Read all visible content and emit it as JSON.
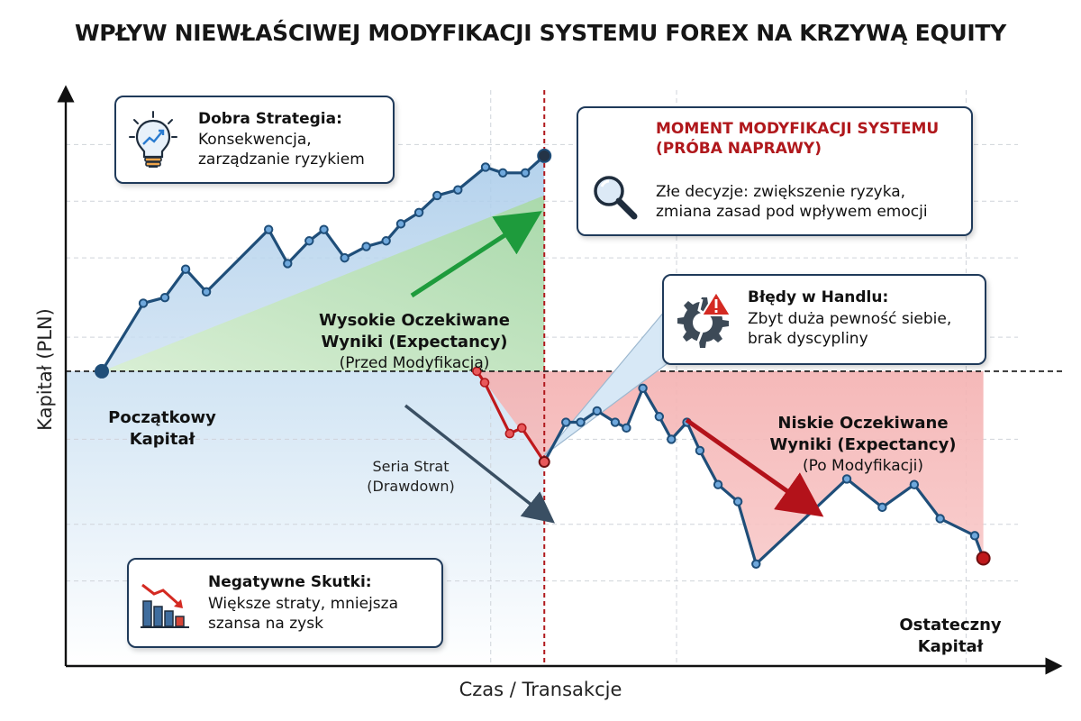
{
  "title": "WPŁYW NIEWŁAŚCIWEJ MODYFIKACJI SYSTEMU FOREX NA KRZYWĄ EQUITY",
  "chart_data": {
    "type": "line",
    "xlabel": "Czas / Transakcje",
    "ylabel": "Kapitał (PLN)",
    "xlim": [
      0,
      1060
    ],
    "ylim": [
      0,
      100
    ],
    "baseline_y": 52,
    "modification_x": 512,
    "grid": true,
    "series": [
      {
        "phase": "before",
        "color": "#1f4e79",
        "points": [
          [
            0,
            52
          ],
          [
            48,
            64
          ],
          [
            73,
            65
          ],
          [
            97,
            70
          ],
          [
            121,
            66
          ],
          [
            193,
            77
          ],
          [
            215,
            71
          ],
          [
            240,
            75
          ],
          [
            257,
            77
          ],
          [
            281,
            72
          ],
          [
            306,
            74
          ],
          [
            329,
            75
          ],
          [
            346,
            78
          ],
          [
            367,
            80
          ],
          [
            388,
            83
          ],
          [
            412,
            84
          ],
          [
            444,
            88
          ],
          [
            464,
            87
          ],
          [
            490,
            87
          ],
          [
            512,
            90
          ]
        ]
      },
      {
        "phase": "drawdown",
        "color": "#c0191c",
        "points": [
          [
            434,
            52
          ],
          [
            443,
            50
          ],
          [
            472,
            41
          ],
          [
            486,
            42
          ],
          [
            512,
            36
          ]
        ]
      },
      {
        "phase": "after",
        "color": "#1f4e79",
        "points": [
          [
            512,
            36
          ],
          [
            537,
            43
          ],
          [
            554,
            43
          ],
          [
            573,
            45
          ],
          [
            594,
            43
          ],
          [
            607,
            42
          ],
          [
            626,
            49
          ],
          [
            645,
            44
          ],
          [
            659,
            40
          ],
          [
            677,
            43
          ],
          [
            692,
            38
          ],
          [
            713,
            32
          ],
          [
            736,
            29
          ],
          [
            757,
            18
          ],
          [
            862,
            33
          ],
          [
            903,
            28
          ],
          [
            940,
            32
          ],
          [
            970,
            26
          ],
          [
            1010,
            23
          ],
          [
            1020,
            19
          ]
        ]
      }
    ],
    "annotations": {
      "start_point": [
        "Początkowy",
        "Kapitał"
      ],
      "end_point": [
        "Ostateczny",
        "Kapitał"
      ],
      "high_expectancy": [
        "Wysokie Oczekiwane",
        "Wyniki (Expectancy)",
        "(Przed Modyfikacją)"
      ],
      "low_expectancy": [
        "Niskie Oczekiwane",
        "Wyniki (Expectancy)",
        "(Po Modyfikacji)"
      ],
      "drawdown": [
        "Seria Strat",
        "(Drawdown)"
      ]
    }
  },
  "cards": {
    "good_strategy": {
      "icon": "lightbulb-chart-icon",
      "heading": "Dobra Strategia:",
      "lines": [
        "Konsekwencja,",
        "zarządzanie ryzykiem"
      ]
    },
    "modification": {
      "icon": "magnifier-icon",
      "heading_lines": [
        "MOMENT MODYFIKACJI SYSTEMU",
        "(PRÓBA NAPRAWY)"
      ],
      "heading_color": "#b0181c",
      "lines": [
        "Złe decyzje: zwiększenie ryzyka,",
        "zmiana zasad pod wpływem emocji"
      ]
    },
    "trading_errors": {
      "icon": "broken-gear-warning-icon",
      "heading": "Błędy w Handlu:",
      "lines": [
        "Zbyt duża pewność siebie,",
        "brak dyscypliny"
      ]
    },
    "negative_effects": {
      "icon": "falling-bars-chart-icon",
      "heading": "Negatywne Skutki:",
      "lines": [
        "Większe straty, mniejsza",
        "szansa na zysk"
      ]
    }
  }
}
